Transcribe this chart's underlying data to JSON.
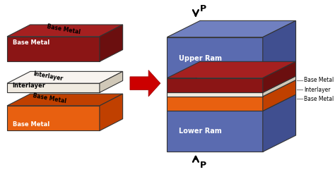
{
  "bg_color": "#ffffff",
  "left_bricks": [
    {
      "label": "Base Metal",
      "label_color": "white",
      "face_color": "#8B1515",
      "top_color": "#A52020",
      "side_color": "#6B0F0F"
    },
    {
      "label": "Interlayer",
      "label_color": "black",
      "face_color": "#C8C8C8",
      "top_color": "#E0E0E0",
      "side_color": "#A0A0A0"
    },
    {
      "label": "Base Metal",
      "label_color": "white",
      "face_color": "#E86010",
      "top_color": "#111111",
      "side_color": "#C04000"
    }
  ],
  "ram_face": "#5A6BB0",
  "ram_top": "#7080C0",
  "ram_side": "#404F90",
  "bm_face": "#8B1515",
  "bm_top": "#A52020",
  "bm_side": "#6B0F0F",
  "il_face": "#F0EAE0",
  "il_top": "#F8F4F0",
  "il_side": "#D0C8B8",
  "or_face": "#E86010",
  "or_top": "#C04000",
  "or_side": "#C04000",
  "arrow_color": "#CC0000",
  "annotations": [
    "Base Metal",
    "Interlayer",
    "Base Metal"
  ],
  "pressure_label": "P"
}
